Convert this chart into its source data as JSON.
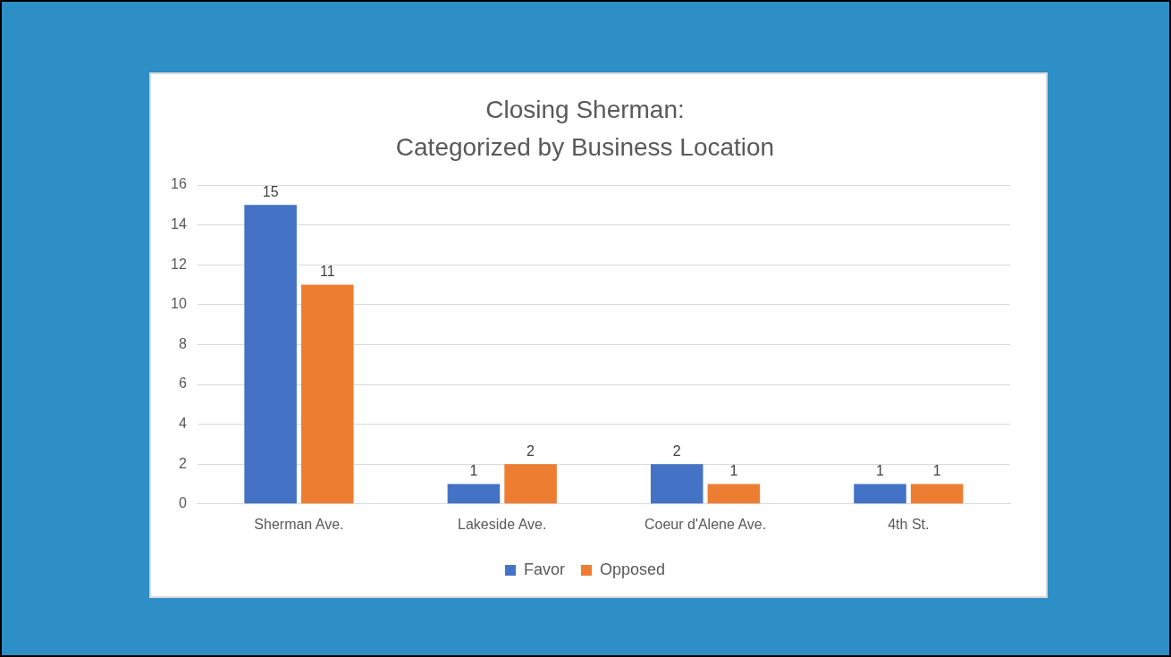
{
  "chart_data": {
    "type": "bar",
    "title": "Closing Sherman:\nCategorized by Business Location",
    "categories": [
      "Sherman Ave.",
      "Lakeside Ave.",
      "Coeur d'Alene Ave.",
      "4th St."
    ],
    "series": [
      {
        "name": "Favor",
        "color": "#4472c4",
        "values": [
          15,
          1,
          2,
          1
        ]
      },
      {
        "name": "Opposed",
        "color": "#ed7d31",
        "values": [
          11,
          2,
          1,
          1
        ]
      }
    ],
    "ylim": [
      0,
      16
    ],
    "yticks": [
      0,
      2,
      4,
      6,
      8,
      10,
      12,
      14,
      16
    ],
    "grid": "y",
    "legend": "bottom",
    "data_labels": true
  }
}
